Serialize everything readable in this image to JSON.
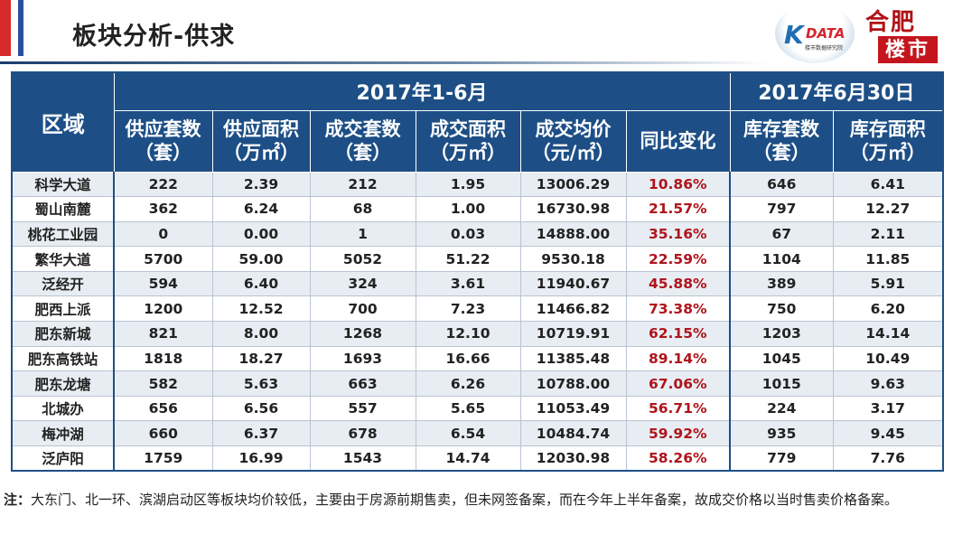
{
  "header": {
    "title": "板块分析-供求"
  },
  "logos": {
    "kdata_brand": "DATA",
    "kdata_sub": "楼市数据研究院",
    "hefei_top": "合肥",
    "hefei_bottom": "楼市"
  },
  "table": {
    "region_header": "区域",
    "period_1": "2017年1-6月",
    "period_2": "2017年6月30日",
    "columns": [
      {
        "line1": "供应套数",
        "line2": "（套）"
      },
      {
        "line1": "供应面积",
        "line2": "（万㎡）"
      },
      {
        "line1": "成交套数",
        "line2": "（套）"
      },
      {
        "line1": "成交面积",
        "line2": "（万㎡）"
      },
      {
        "line1": "成交均价",
        "line2": "（元/㎡）"
      },
      {
        "line1": "同比变化",
        "line2": ""
      },
      {
        "line1": "库存套数",
        "line2": "（套）"
      },
      {
        "line1": "库存面积",
        "line2": "（万㎡）"
      }
    ],
    "rows": [
      [
        "科学大道",
        "222",
        "2.39",
        "212",
        "1.95",
        "13006.29",
        "10.86%",
        "646",
        "6.41"
      ],
      [
        "蜀山南麓",
        "362",
        "6.24",
        "68",
        "1.00",
        "16730.98",
        "21.57%",
        "797",
        "12.27"
      ],
      [
        "桃花工业园",
        "0",
        "0.00",
        "1",
        "0.03",
        "14888.00",
        "35.16%",
        "67",
        "2.11"
      ],
      [
        "繁华大道",
        "5700",
        "59.00",
        "5052",
        "51.22",
        "9530.18",
        "22.59%",
        "1104",
        "11.85"
      ],
      [
        "泛经开",
        "594",
        "6.40",
        "324",
        "3.61",
        "11940.67",
        "45.88%",
        "389",
        "5.91"
      ],
      [
        "肥西上派",
        "1200",
        "12.52",
        "700",
        "7.23",
        "11466.82",
        "73.38%",
        "750",
        "6.20"
      ],
      [
        "肥东新城",
        "821",
        "8.00",
        "1268",
        "12.10",
        "10719.91",
        "62.15%",
        "1203",
        "14.14"
      ],
      [
        "肥东高铁站",
        "1818",
        "18.27",
        "1693",
        "16.66",
        "11385.48",
        "89.14%",
        "1045",
        "10.49"
      ],
      [
        "肥东龙塘",
        "582",
        "5.63",
        "663",
        "6.26",
        "10788.00",
        "67.06%",
        "1015",
        "9.63"
      ],
      [
        "北城办",
        "656",
        "6.56",
        "557",
        "5.65",
        "11053.49",
        "56.71%",
        "224",
        "3.17"
      ],
      [
        "梅冲湖",
        "660",
        "6.37",
        "678",
        "6.54",
        "10484.74",
        "59.92%",
        "935",
        "9.45"
      ],
      [
        "泛庐阳",
        "1759",
        "16.99",
        "1543",
        "14.74",
        "12030.98",
        "58.26%",
        "779",
        "7.76"
      ]
    ]
  },
  "note": {
    "label": "注：",
    "text": "大东门、北一环、滨湖启动区等板块均价较低，主要由于房源前期售卖，但未网签备案，而在今年上半年备案，故成交价格以当时售卖价格备案。"
  },
  "colors": {
    "header_blue": "#1d4f86",
    "yoy_red": "#b0141b",
    "stripe": "#e8edf3"
  }
}
